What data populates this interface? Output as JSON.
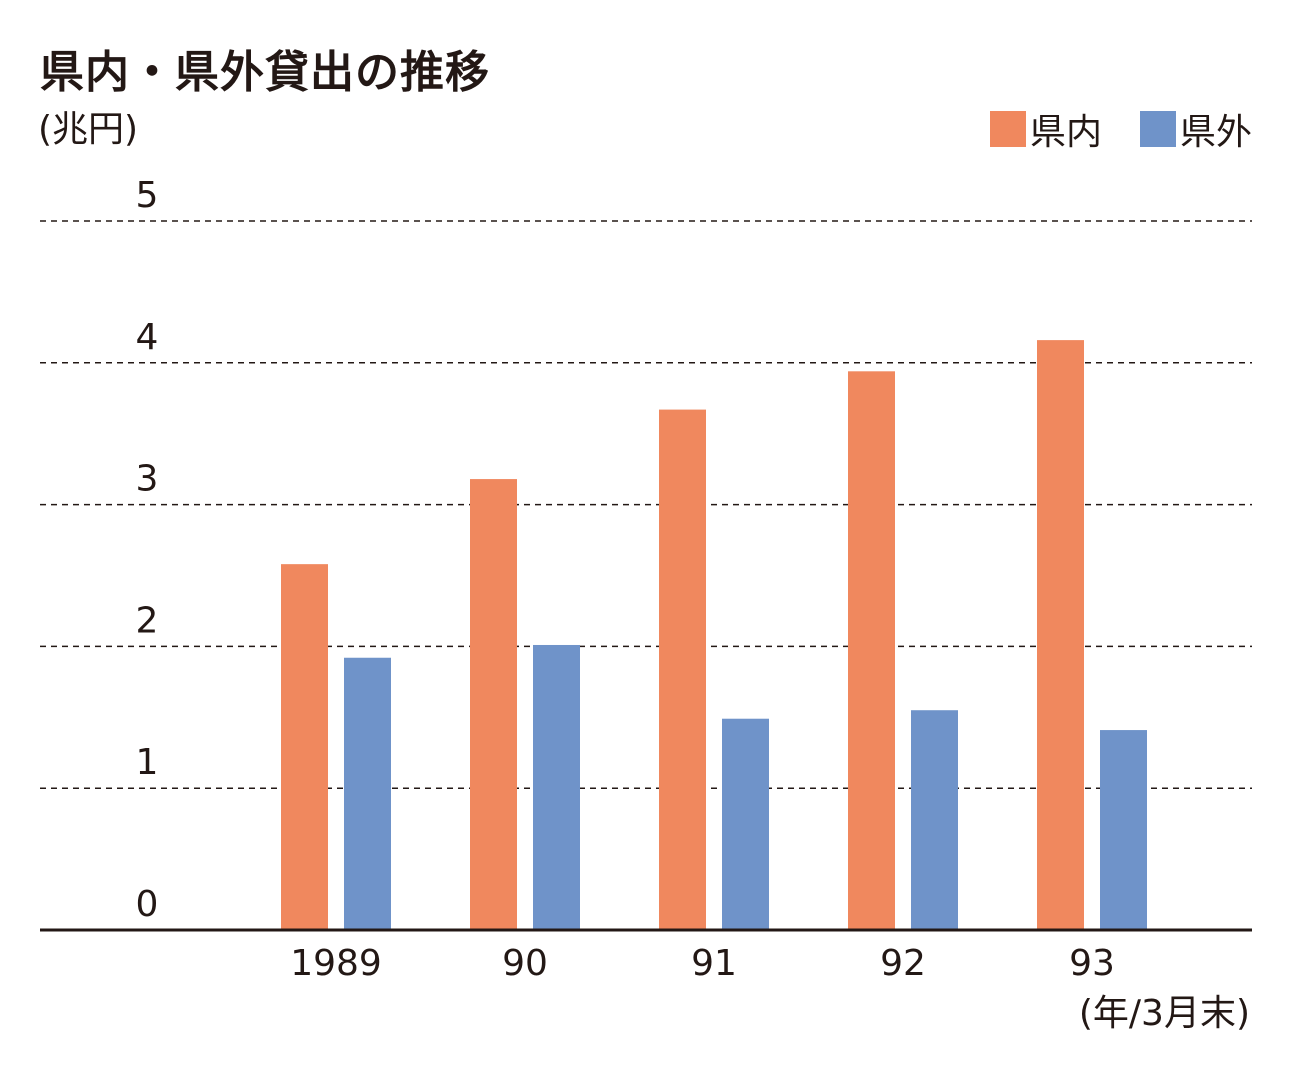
{
  "title": "県内・県外貸出の推移",
  "unit_label": "(兆円)",
  "x_unit_label": "(年/3月末)",
  "colors": {
    "domestic": "#f0885e",
    "external": "#6f93c9",
    "axis": "#231815",
    "grid": "#231815"
  },
  "legend": [
    {
      "name": "県内",
      "color_key": "domestic"
    },
    {
      "name": "県外",
      "color_key": "external"
    }
  ],
  "chart_data": {
    "type": "bar",
    "title": "県内・県外貸出の推移",
    "ylabel": "(兆円)",
    "xlabel": "(年/3月末)",
    "ylim": [
      0,
      5
    ],
    "yticks": [
      0,
      1,
      2,
      3,
      4,
      5
    ],
    "grid": true,
    "legend_position": "top-right",
    "categories": [
      "1989",
      "90",
      "91",
      "92",
      "93"
    ],
    "series": [
      {
        "name": "県内",
        "color": "#f0885e",
        "values": [
          2.58,
          3.18,
          3.67,
          3.94,
          4.16
        ]
      },
      {
        "name": "県外",
        "color": "#6f93c9",
        "values": [
          1.92,
          2.01,
          1.49,
          1.55,
          1.41
        ]
      }
    ]
  }
}
